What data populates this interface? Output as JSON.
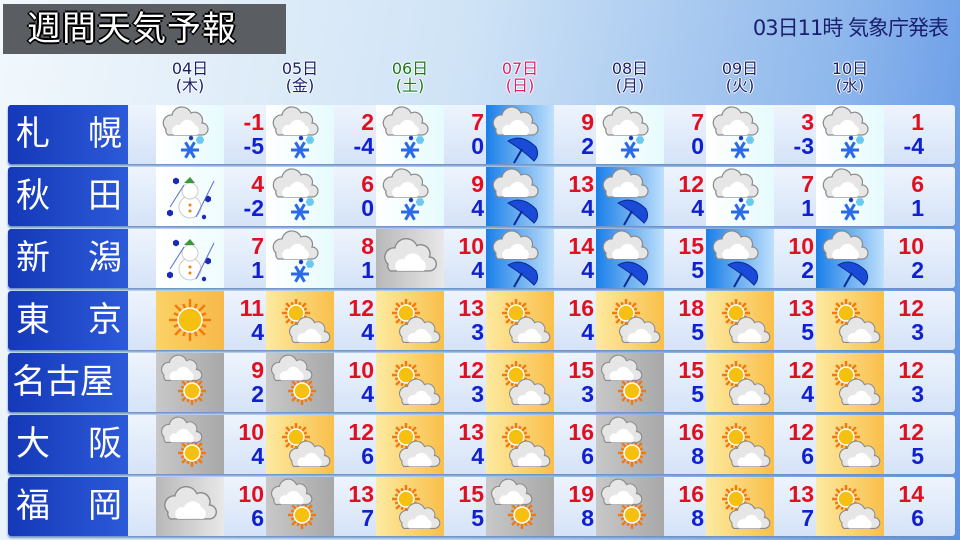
{
  "header": {
    "title": "週間天気予報",
    "issued": "03日11時 気象庁発表"
  },
  "days": [
    {
      "date": "04日",
      "dow": "(木)",
      "color": "#1a1f6e"
    },
    {
      "date": "05日",
      "dow": "(金)",
      "color": "#1a1f6e"
    },
    {
      "date": "06日",
      "dow": "(土)",
      "color": "#1a7a1a"
    },
    {
      "date": "07日",
      "dow": "(日)",
      "color": "#e0206a"
    },
    {
      "date": "08日",
      "dow": "(月)",
      "color": "#1a1f6e"
    },
    {
      "date": "09日",
      "dow": "(火)",
      "color": "#1a1f6e"
    },
    {
      "date": "10日",
      "dow": "(水)",
      "color": "#1a1f6e"
    }
  ],
  "cities": [
    {
      "name": "札幌",
      "icons": [
        "snow",
        "snow",
        "snow",
        "rain",
        "snow",
        "snow",
        "snow"
      ],
      "high": [
        "-1",
        "2",
        "7",
        "9",
        "7",
        "3",
        "1"
      ],
      "low": [
        "-5",
        "-4",
        "0",
        "2",
        "0",
        "-3",
        "-4"
      ]
    },
    {
      "name": "秋田",
      "icons": [
        "snowman",
        "snow",
        "snow",
        "rain",
        "rain",
        "snow",
        "snow"
      ],
      "high": [
        "4",
        "6",
        "9",
        "13",
        "12",
        "7",
        "6"
      ],
      "low": [
        "-2",
        "0",
        "4",
        "4",
        "4",
        "1",
        "1"
      ]
    },
    {
      "name": "新潟",
      "icons": [
        "snowman",
        "snow",
        "cloudy",
        "rain",
        "rain",
        "rain",
        "rain"
      ],
      "high": [
        "7",
        "8",
        "10",
        "14",
        "15",
        "10",
        "10"
      ],
      "low": [
        "1",
        "1",
        "4",
        "4",
        "5",
        "2",
        "2"
      ]
    },
    {
      "name": "東京",
      "icons": [
        "sunny",
        "sun-cloud",
        "sun-cloud",
        "sun-cloud",
        "sun-cloud",
        "sun-cloud",
        "sun-cloud"
      ],
      "high": [
        "11",
        "12",
        "13",
        "16",
        "18",
        "13",
        "12"
      ],
      "low": [
        "4",
        "4",
        "3",
        "4",
        "5",
        "5",
        "3"
      ]
    },
    {
      "name": "名古屋",
      "icons": [
        "cloud-sun",
        "cloud-sun",
        "sun-cloud",
        "sun-cloud",
        "cloud-sun",
        "sun-cloud",
        "sun-cloud"
      ],
      "high": [
        "9",
        "10",
        "12",
        "15",
        "15",
        "12",
        "12"
      ],
      "low": [
        "2",
        "4",
        "3",
        "3",
        "5",
        "4",
        "3"
      ]
    },
    {
      "name": "大阪",
      "icons": [
        "cloud-sun",
        "sun-cloud",
        "sun-cloud",
        "sun-cloud",
        "cloud-sun",
        "sun-cloud",
        "sun-cloud"
      ],
      "high": [
        "10",
        "12",
        "13",
        "16",
        "16",
        "12",
        "12"
      ],
      "low": [
        "4",
        "6",
        "4",
        "6",
        "8",
        "6",
        "5"
      ]
    },
    {
      "name": "福岡",
      "icons": [
        "cloudy",
        "cloud-sun",
        "sun-cloud",
        "cloud-sun",
        "cloud-sun",
        "sun-cloud",
        "sun-cloud"
      ],
      "high": [
        "10",
        "13",
        "15",
        "19",
        "16",
        "13",
        "14"
      ],
      "low": [
        "6",
        "7",
        "5",
        "8",
        "8",
        "7",
        "6"
      ]
    }
  ]
}
